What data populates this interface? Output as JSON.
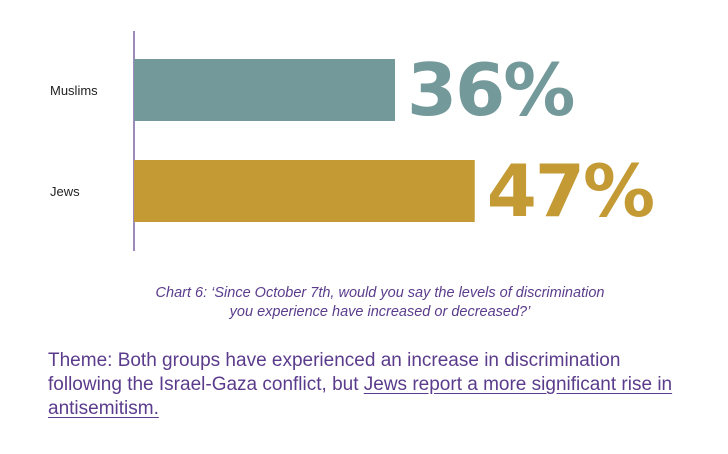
{
  "chart_data": {
    "type": "bar",
    "orientation": "horizontal",
    "categories": [
      "Muslims",
      "Jews"
    ],
    "values": [
      36,
      47
    ],
    "value_labels": [
      "36%",
      "47%"
    ],
    "unit": "%",
    "colors": [
      "#74999a",
      "#c39a34"
    ],
    "axis_color": "#5b3c8c",
    "xlim": [
      0,
      100
    ],
    "grid": false,
    "legend": "none"
  },
  "caption": {
    "line1": "Chart 6: ‘Since October 7th, would you say the levels of discrimination",
    "line2": "you experience have increased or decreased?’"
  },
  "theme": {
    "text_before": "Theme: Both groups have experienced an increase in discrimination following the Israel-Gaza conflict, but ",
    "text_highlight": "Jews report a more significant rise in antisemitism."
  }
}
